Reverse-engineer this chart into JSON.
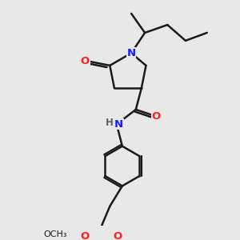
{
  "background_color": "#e8e8e8",
  "bond_color": "#1a1a1a",
  "bond_width": 1.8,
  "atom_colors": {
    "N": "#1a1aff",
    "O": "#ff2020",
    "C": "#1a1a1a",
    "H": "#606060"
  },
  "font_size": 9.5,
  "figsize": [
    3.0,
    3.0
  ],
  "dpi": 100
}
